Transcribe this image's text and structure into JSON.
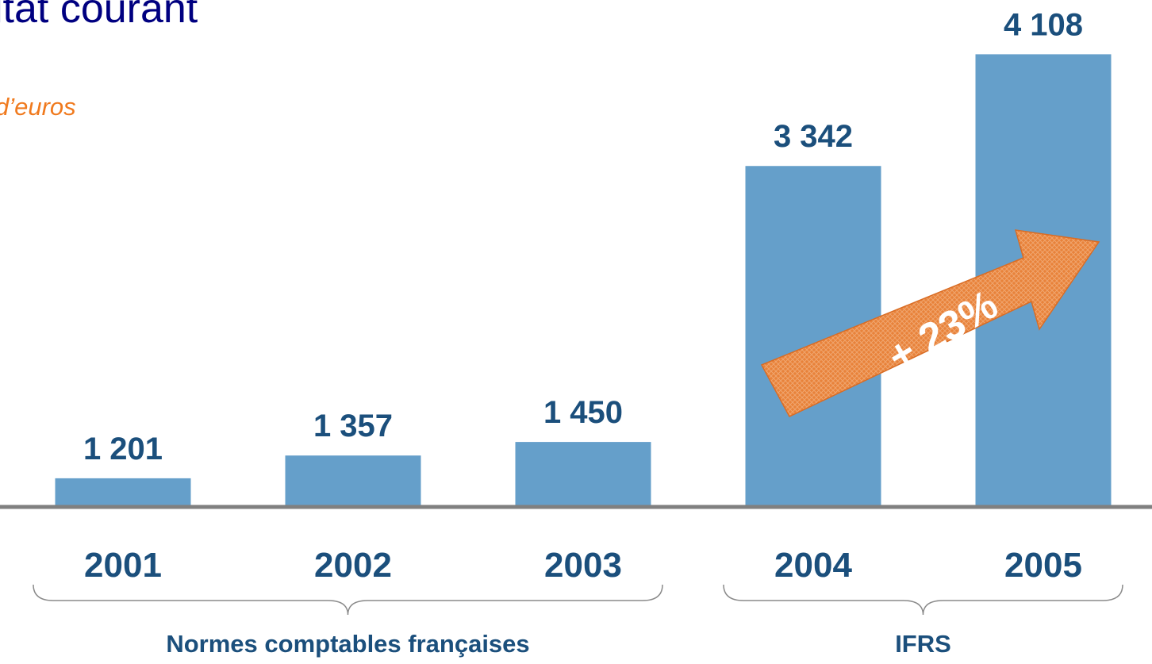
{
  "chart_data": {
    "type": "bar",
    "title": "ltat courant",
    "subtitle": "d’euros",
    "categories": [
      "2001",
      "2002",
      "2003",
      "2004",
      "2005"
    ],
    "values": [
      1201,
      1357,
      1450,
      3342,
      4108
    ],
    "value_labels": [
      "1 201",
      "1 357",
      "1 450",
      "3 342",
      "4 108"
    ],
    "color": "#659fca",
    "ylim": [
      1010,
      4480
    ],
    "grid": false,
    "groups": [
      {
        "label": "Normes comptables françaises",
        "size": 3
      },
      {
        "label": "IFRS",
        "size": 2
      }
    ],
    "annotation": "+ 23%"
  }
}
